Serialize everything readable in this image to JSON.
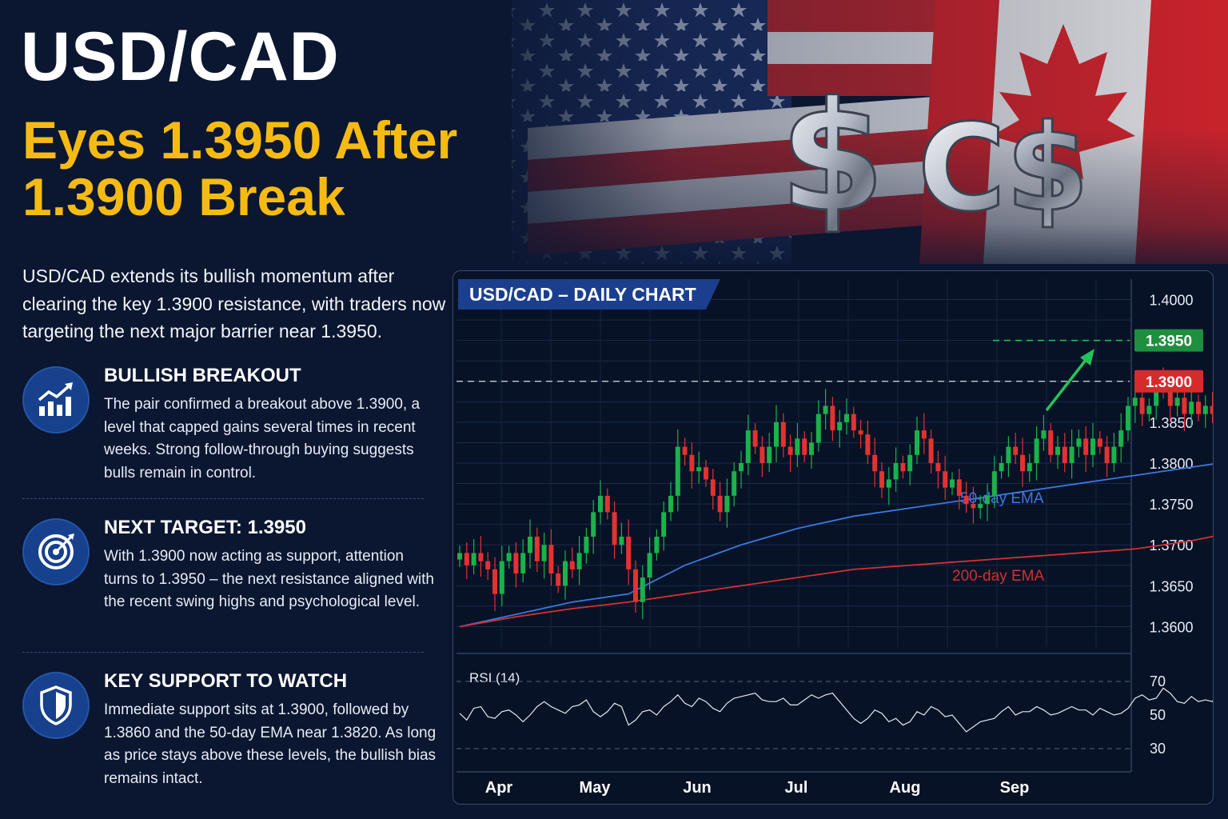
{
  "header": {
    "title": "USD/CAD",
    "subtitle_line1": "Eyes 1.3950 After",
    "subtitle_line2": "1.3900 Break",
    "symbols": [
      "$",
      "C$"
    ]
  },
  "intro": "USD/CAD extends its bullish momentum after clearing the key 1.3900 resistance, with traders now targeting the next major barrier near 1.3950.",
  "points": [
    {
      "icon": "growth-chart-icon",
      "title": "BULLISH BREAKOUT",
      "text": "The pair confirmed a breakout above 1.3900, a level that capped gains several times in recent weeks. Strong follow-through buying suggests bulls remain in control."
    },
    {
      "icon": "target-icon",
      "title": "NEXT TARGET: 1.3950",
      "text": "With 1.3900 now acting as support, attention turns to 1.3950 – the next resistance aligned with the recent swing highs and psychological level."
    },
    {
      "icon": "shield-icon",
      "title": "KEY SUPPORT TO WATCH",
      "text": "Immediate support sits at 1.3900, followed by 1.3860 and the 50-day EMA near 1.3820. As long as price stays above these levels, the bullish bias remains intact."
    }
  ],
  "chart_data": {
    "type": "candlestick",
    "title": "USD/CAD – DAILY CHART",
    "x_ticks": [
      "Apr",
      "May",
      "Jun",
      "Jul",
      "Aug",
      "Sep"
    ],
    "y_ticks": [
      "1.4000",
      "1.3950",
      "1.3900",
      "1.3850",
      "1.3800",
      "1.3750",
      "1.3700",
      "1.3650",
      "1.3600"
    ],
    "ylim": [
      1.3575,
      1.4025
    ],
    "grid": true,
    "levels": [
      {
        "label": "1.3950",
        "value": 1.395,
        "color": "#1e8f3e"
      },
      {
        "label": "1.3900",
        "value": 1.39,
        "color": "#d62b2b"
      }
    ],
    "close": [
      1.369,
      1.3675,
      1.369,
      1.368,
      1.367,
      1.364,
      1.368,
      1.369,
      1.3665,
      1.369,
      1.371,
      1.368,
      1.37,
      1.3665,
      1.365,
      1.368,
      1.367,
      1.369,
      1.371,
      1.374,
      1.376,
      1.374,
      1.37,
      1.371,
      1.367,
      1.363,
      1.366,
      1.369,
      1.371,
      1.374,
      1.376,
      1.382,
      1.381,
      1.379,
      1.3795,
      1.378,
      1.376,
      1.374,
      1.376,
      1.379,
      1.38,
      1.384,
      1.382,
      1.38,
      1.382,
      1.385,
      1.382,
      1.381,
      1.383,
      1.381,
      1.3825,
      1.386,
      1.387,
      1.384,
      1.385,
      1.386,
      1.384,
      1.3835,
      1.381,
      1.379,
      1.377,
      1.378,
      1.38,
      1.379,
      1.381,
      1.384,
      1.383,
      1.38,
      1.379,
      1.377,
      1.378,
      1.376,
      1.375,
      1.3745,
      1.375,
      1.376,
      1.379,
      1.38,
      1.382,
      1.381,
      1.379,
      1.38,
      1.383,
      1.384,
      1.381,
      1.382,
      1.38,
      1.382,
      1.383,
      1.381,
      1.383,
      1.382,
      1.38,
      1.382,
      1.384,
      1.387,
      1.388,
      1.386,
      1.387,
      1.39,
      1.389,
      1.387,
      1.388,
      1.386,
      1.3875,
      1.386,
      1.387,
      1.386,
      1.388
    ],
    "series": [
      {
        "name": "50-day EMA",
        "color": "#3a78e0",
        "x": [
          0,
          8,
          16,
          24,
          32,
          40,
          48,
          56,
          64,
          72,
          80,
          88,
          96,
          104,
          108
        ],
        "values": [
          1.36,
          1.3615,
          1.363,
          1.364,
          1.3675,
          1.37,
          1.372,
          1.3735,
          1.3745,
          1.3755,
          1.3765,
          1.3775,
          1.3785,
          1.3795,
          1.38
        ]
      },
      {
        "name": "200-day EMA",
        "color": "#d23030",
        "x": [
          0,
          8,
          16,
          24,
          32,
          40,
          48,
          56,
          64,
          72,
          80,
          88,
          96,
          104,
          108
        ],
        "values": [
          1.36,
          1.3612,
          1.3622,
          1.363,
          1.364,
          1.365,
          1.366,
          1.367,
          1.3675,
          1.368,
          1.3685,
          1.369,
          1.3695,
          1.3705,
          1.3712
        ]
      }
    ],
    "rsi": {
      "label": "RSI (14)",
      "y_ticks": [
        "70",
        "50",
        "30"
      ],
      "ylim": [
        20,
        80
      ],
      "values": [
        51,
        47,
        54,
        55,
        49,
        48,
        52,
        53,
        50,
        46,
        50,
        55,
        58,
        55,
        53,
        51,
        55,
        56,
        59,
        52,
        49,
        52,
        57,
        55,
        44,
        47,
        52,
        53,
        50,
        55,
        58,
        62,
        57,
        55,
        60,
        58,
        54,
        52,
        57,
        60,
        61,
        62,
        63,
        59,
        58,
        58,
        60,
        56,
        56,
        59,
        62,
        60,
        62,
        63,
        58,
        53,
        48,
        45,
        48,
        53,
        51,
        46,
        48,
        44,
        46,
        52,
        50,
        55,
        53,
        49,
        50,
        45,
        40,
        43,
        46,
        47,
        48,
        52,
        55,
        50,
        52,
        52,
        55,
        53,
        50,
        51,
        53,
        55,
        53,
        53,
        50,
        54,
        52,
        50,
        51,
        54,
        60,
        62,
        59,
        60,
        66,
        63,
        58,
        57,
        61,
        58,
        59,
        58,
        65
      ]
    }
  }
}
